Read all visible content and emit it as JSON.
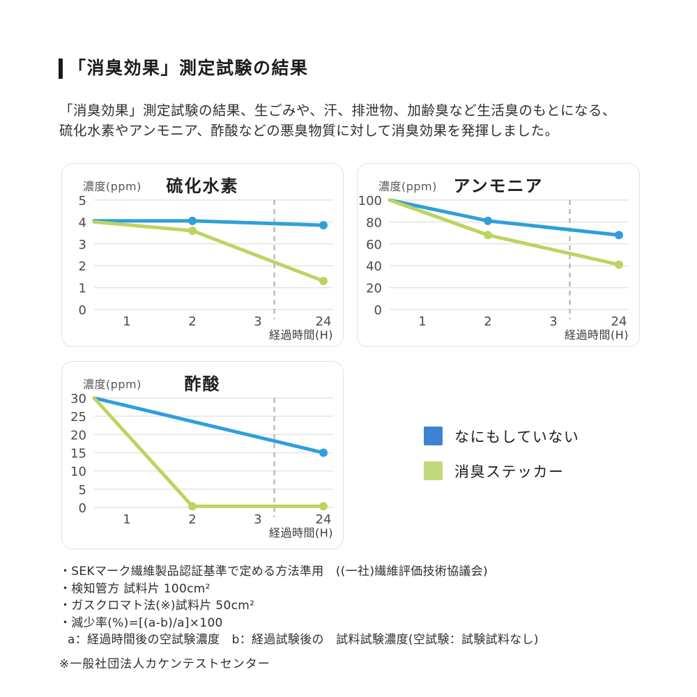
{
  "header": {
    "title": "「消臭効果」測定試験の結果",
    "body": "「消臭効果」測定試験の結果、生ごみや、汗、排泄物、加齢臭など生活臭のもとになる、\n硫化水素やアンモニア、酢酸などの悪臭物質に対して消臭効果を発揮しました。"
  },
  "chart_data": [
    {
      "type": "line",
      "title": "硫化水素",
      "y_axis_label": "濃度(ppm)",
      "x_axis_label": "経過時間(H)",
      "x_categories": [
        "1",
        "2",
        "3",
        "24"
      ],
      "y_ticks": [
        0,
        1,
        2,
        3,
        4,
        5
      ],
      "ylim": [
        0,
        5
      ],
      "grid": true,
      "dashed_divider_index": 2.25,
      "series": [
        {
          "name": "なにもしていない",
          "color": "#2f9fdb",
          "points": [
            {
              "x": "start",
              "value": 4.05,
              "marker": false
            },
            {
              "x": "2",
              "value": 4.05,
              "marker": true
            },
            {
              "x": "24",
              "value": 3.85,
              "marker": true
            }
          ]
        },
        {
          "name": "消臭ステッカー",
          "color": "#bcd45f",
          "points": [
            {
              "x": "start",
              "value": 4.0,
              "marker": false
            },
            {
              "x": "2",
              "value": 3.6,
              "marker": true
            },
            {
              "x": "24",
              "value": 1.3,
              "marker": true
            }
          ]
        }
      ]
    },
    {
      "type": "line",
      "title": "アンモニア",
      "y_axis_label": "濃度(ppm)",
      "x_axis_label": "経過時間(H)",
      "x_categories": [
        "1",
        "2",
        "3",
        "24"
      ],
      "y_ticks": [
        0,
        20,
        40,
        60,
        80,
        100
      ],
      "ylim": [
        0,
        100
      ],
      "grid": true,
      "dashed_divider_index": 2.25,
      "series": [
        {
          "name": "なにもしていない",
          "color": "#2f9fdb",
          "points": [
            {
              "x": "start",
              "value": 100,
              "marker": false
            },
            {
              "x": "2",
              "value": 81,
              "marker": true
            },
            {
              "x": "24",
              "value": 68,
              "marker": true
            }
          ]
        },
        {
          "name": "消臭ステッカー",
          "color": "#bcd45f",
          "points": [
            {
              "x": "start",
              "value": 100,
              "marker": false
            },
            {
              "x": "2",
              "value": 68,
              "marker": true
            },
            {
              "x": "24",
              "value": 41,
              "marker": true
            }
          ]
        }
      ]
    },
    {
      "type": "line",
      "title": "酢酸",
      "y_axis_label": "濃度(ppm)",
      "x_axis_label": "経過時間(H)",
      "x_categories": [
        "1",
        "2",
        "3",
        "24"
      ],
      "y_ticks": [
        0,
        5,
        10,
        15,
        20,
        25,
        30
      ],
      "ylim": [
        0,
        30
      ],
      "grid": true,
      "dashed_divider_index": 2.25,
      "series": [
        {
          "name": "なにもしていない",
          "color": "#2f9fdb",
          "points": [
            {
              "x": "start",
              "value": 30,
              "marker": false
            },
            {
              "x": "24",
              "value": 15,
              "marker": true
            }
          ]
        },
        {
          "name": "消臭ステッカー",
          "color": "#bcd45f",
          "points": [
            {
              "x": "start",
              "value": 30,
              "marker": false
            },
            {
              "x": "2",
              "value": 0.3,
              "marker": true
            },
            {
              "x": "24",
              "value": 0.3,
              "marker": true
            }
          ]
        }
      ]
    }
  ],
  "legend": {
    "items": [
      {
        "label": "なにもしていない",
        "color": "#3e82d4"
      },
      {
        "label": "消臭ステッカー",
        "color": "#c3d878"
      }
    ]
  },
  "notes": {
    "lines": [
      "・SEKマーク繊維製品認証基準で定める方法準用　((一社)繊維評価技術協議会)",
      "・検知管方 試料片 100cm²",
      "・ガスクロマト法(※)試料片 50cm²",
      "・減少率(%)=[(a-b)/a]×100",
      "a：経過時間後の空試験濃度　b：経過試験後の　試料試験濃度(空試験：試験試料なし)"
    ],
    "footnote": "※一般社団法人カケンテストセンター"
  }
}
